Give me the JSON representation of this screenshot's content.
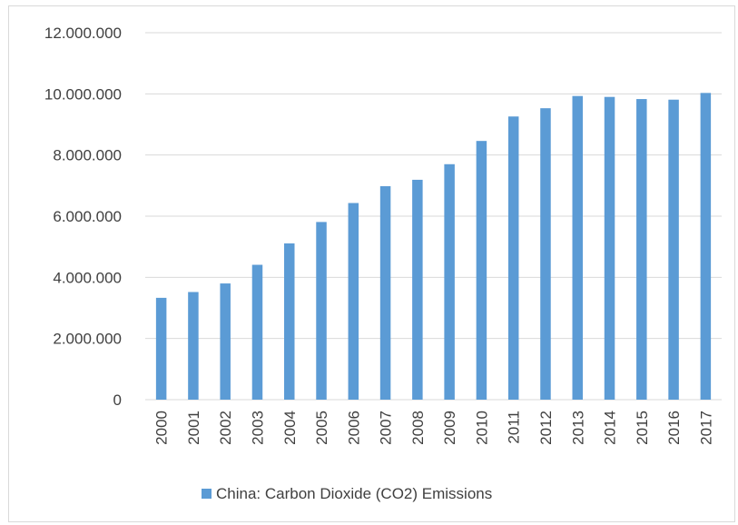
{
  "chart_data": {
    "type": "bar",
    "title": "",
    "xlabel": "",
    "ylabel": "",
    "categories": [
      "2000",
      "2001",
      "2002",
      "2003",
      "2004",
      "2005",
      "2006",
      "2007",
      "2008",
      "2009",
      "2010",
      "2011",
      "2012",
      "2013",
      "2014",
      "2015",
      "2016",
      "2017"
    ],
    "series": [
      {
        "name": "China: Carbon Dioxide (CO2) Emissions",
        "color": "#5b9bd5",
        "values": [
          3330000,
          3520000,
          3800000,
          4410000,
          5110000,
          5810000,
          6430000,
          6980000,
          7190000,
          7700000,
          8460000,
          9260000,
          9530000,
          9930000,
          9900000,
          9830000,
          9810000,
          10030000
        ]
      }
    ],
    "ylim": [
      0,
      12000000
    ],
    "yticks": [
      0,
      2000000,
      4000000,
      6000000,
      8000000,
      10000000,
      12000000
    ],
    "ytick_labels": [
      "0",
      "2.000.000",
      "4.000.000",
      "6.000.000",
      "8.000.000",
      "10.000.000",
      "12.000.000"
    ],
    "grid": true,
    "legend": "bottom"
  }
}
